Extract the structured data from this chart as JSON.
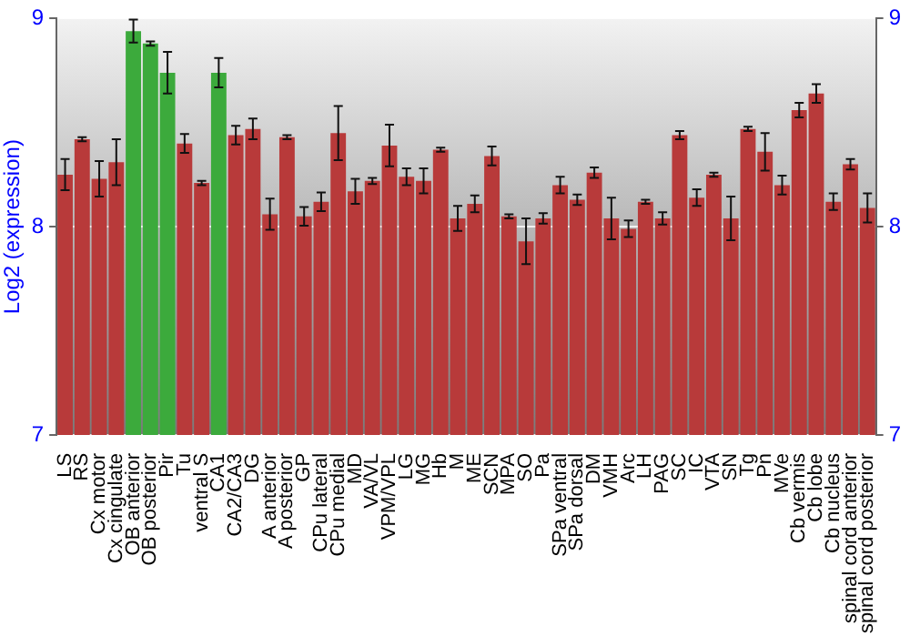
{
  "chart_data": {
    "type": "bar",
    "ylabel": "Log2 (expression)",
    "categories": [
      "LS",
      "RS",
      "Cx motor",
      "Cx cingulate",
      "OB anterior",
      "OB posterior",
      "Pir",
      "Tu",
      "ventral S",
      "CA1",
      "CA2/CA3",
      "DG",
      "A anterior",
      "A posterior",
      "GP",
      "CPu lateral",
      "CPu medial",
      "MD",
      "VA/VL",
      "VPM/VPL",
      "LG",
      "MG",
      "Hb",
      "M",
      "ME",
      "SCN",
      "MPA",
      "SO",
      "Pa",
      "SPa ventral",
      "SPa dorsal",
      "DM",
      "VMH",
      "Arc",
      "LH",
      "PAG",
      "SC",
      "IC",
      "VTA",
      "SN",
      "Tg",
      "Pn",
      "MVe",
      "Cb vermis",
      "Cb lobe",
      "Cb nucleus",
      "spinal cord anterior",
      "spinal cord posterior"
    ],
    "values": [
      8.25,
      8.42,
      8.23,
      8.31,
      8.94,
      8.88,
      8.74,
      8.4,
      8.21,
      8.74,
      8.44,
      8.47,
      8.06,
      8.43,
      8.05,
      8.12,
      8.45,
      8.17,
      8.22,
      8.39,
      8.24,
      8.22,
      8.37,
      8.04,
      8.11,
      8.34,
      8.05,
      7.93,
      8.04,
      8.2,
      8.13,
      8.26,
      8.04,
      7.99,
      8.12,
      8.04,
      8.44,
      8.14,
      8.25,
      8.04,
      8.47,
      8.36,
      8.2,
      8.56,
      8.64,
      8.12,
      8.3,
      8.09
    ],
    "errors": [
      0.075,
      0.01,
      0.085,
      0.11,
      0.055,
      0.01,
      0.1,
      0.045,
      0.01,
      0.07,
      0.045,
      0.05,
      0.075,
      0.01,
      0.045,
      0.045,
      0.13,
      0.06,
      0.015,
      0.1,
      0.04,
      0.06,
      0.01,
      0.06,
      0.04,
      0.045,
      0.01,
      0.11,
      0.025,
      0.04,
      0.025,
      0.025,
      0.1,
      0.04,
      0.01,
      0.03,
      0.02,
      0.04,
      0.01,
      0.105,
      0.01,
      0.09,
      0.045,
      0.035,
      0.045,
      0.04,
      0.025,
      0.07
    ],
    "colors": [
      "#b83a3a",
      "#b83a3a",
      "#b83a3a",
      "#b83a3a",
      "#3caa3c",
      "#3caa3c",
      "#3caa3c",
      "#b83a3a",
      "#b83a3a",
      "#3caa3c",
      "#b83a3a",
      "#b83a3a",
      "#b83a3a",
      "#b83a3a",
      "#b83a3a",
      "#b83a3a",
      "#b83a3a",
      "#b83a3a",
      "#b83a3a",
      "#b83a3a",
      "#b83a3a",
      "#b83a3a",
      "#b83a3a",
      "#b83a3a",
      "#b83a3a",
      "#b83a3a",
      "#b83a3a",
      "#b83a3a",
      "#b83a3a",
      "#b83a3a",
      "#b83a3a",
      "#b83a3a",
      "#b83a3a",
      "#b83a3a",
      "#b83a3a",
      "#b83a3a",
      "#b83a3a",
      "#b83a3a",
      "#b83a3a",
      "#b83a3a",
      "#b83a3a",
      "#b83a3a",
      "#b83a3a",
      "#b83a3a",
      "#b83a3a",
      "#b83a3a",
      "#b83a3a",
      "#b83a3a"
    ],
    "ylim": [
      7,
      9
    ],
    "yticks": [
      7,
      8,
      9
    ],
    "y2lim": [
      7,
      9
    ],
    "y2ticks": [
      7,
      8,
      9
    ],
    "grid": "y",
    "legend": false
  }
}
